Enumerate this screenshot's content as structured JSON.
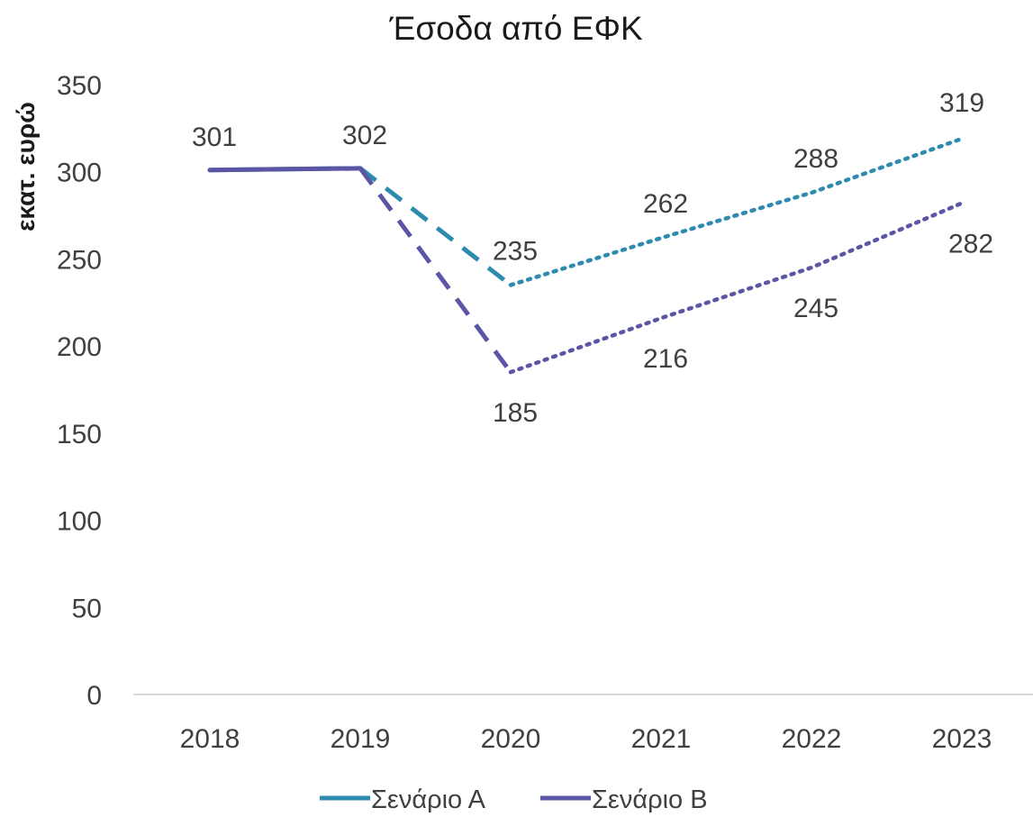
{
  "chart_data": {
    "type": "line",
    "title": "Έσοδα από ΕΦΚ",
    "ylabel": "εκατ. ευρώ",
    "xlabel": "",
    "categories": [
      "2018",
      "2019",
      "2020",
      "2021",
      "2022",
      "2023"
    ],
    "ylim": [
      0,
      350
    ],
    "yticks": [
      0,
      50,
      100,
      150,
      200,
      250,
      300,
      350
    ],
    "grid": false,
    "legend_position": "bottom",
    "series": [
      {
        "name": "Σενάριο Α",
        "color": "#2e8bb0",
        "values": [
          301,
          302,
          235,
          262,
          288,
          319
        ],
        "labels": [
          "",
          "",
          "235",
          "262",
          "288",
          "319"
        ]
      },
      {
        "name": "Σενάριο Β",
        "color": "#5b55a6",
        "values": [
          301,
          302,
          185,
          216,
          245,
          282
        ],
        "labels": [
          "301",
          "302",
          "185",
          "216",
          "245",
          "282"
        ]
      }
    ],
    "line_styles": {
      "actual": "solid (2018–2019)",
      "transition": "dashed (2019–2020)",
      "projection": "dotted (2020–2023)"
    }
  }
}
